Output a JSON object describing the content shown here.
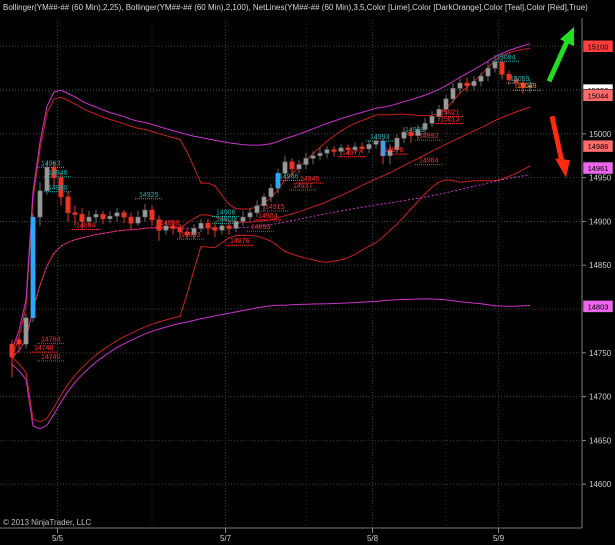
{
  "header": {
    "indicators": "Bollinger(YM##-## (60 Min),2,25), Bollinger(YM##-## (60 Min),2,100), NetLines(YM##-## (60 Min),3,5,Color [Lime],Color [DarkOrange],Color [Teal],Color [Red],True)"
  },
  "footer": {
    "copyright": "© 2013 NinjaTrader, LLC"
  },
  "colors": {
    "background": "#000000",
    "bull_candle": "#6a6a6a",
    "bear_candle": "#ee3322",
    "bollinger_25": "#cc1f1f",
    "bollinger_100": "#cc33cc",
    "netline_teal": "#19b3b3",
    "netline_red": "#ff2a2a",
    "netline_orange": "#ff8c00",
    "cyan_bar": "#2aa8ff",
    "up_arrow": "#22dd22",
    "down_arrow": "#ff2a10"
  },
  "chart_data": {
    "type": "candlestick",
    "ylim": [
      14550,
      15130
    ],
    "y_ticks": [
      14600,
      14650,
      14700,
      14750,
      14800,
      14850,
      14900,
      14950,
      15000,
      15050,
      15100
    ],
    "x_ticks": [
      "5/5",
      "5/7",
      "5/8",
      "5/9"
    ],
    "price_markers": [
      {
        "label": "15100",
        "value": 15100,
        "color": "#ff3f3f"
      },
      {
        "label": "15050",
        "value": 15050,
        "color": "#ffffff"
      },
      {
        "label": "15044",
        "value": 15044,
        "color": "#ff6a6a"
      },
      {
        "label": "14986",
        "value": 14986,
        "color": "#ff6a6a"
      },
      {
        "label": "14961",
        "value": 14961,
        "color": "#ee66ee"
      },
      {
        "label": "14803",
        "value": 14803,
        "color": "#ee66ee"
      }
    ],
    "netline_labels": [
      {
        "text": "14963",
        "color": "teal",
        "i": 5,
        "v": 14963
      },
      {
        "text": "14946",
        "color": "teal",
        "i": 6,
        "v": 14952
      },
      {
        "text": "14930",
        "color": "teal",
        "i": 6,
        "v": 14935
      },
      {
        "text": "14764",
        "color": "red",
        "i": 5,
        "v": 14762
      },
      {
        "text": "14748",
        "color": "red",
        "i": 4,
        "v": 14752
      },
      {
        "text": "14740",
        "color": "red",
        "i": 5,
        "v": 14742
      },
      {
        "text": "14894",
        "color": "red",
        "i": 10,
        "v": 14892
      },
      {
        "text": "14925",
        "color": "teal",
        "i": 19,
        "v": 14927
      },
      {
        "text": "14898",
        "color": "red",
        "i": 22,
        "v": 14895
      },
      {
        "text": "14883",
        "color": "red",
        "i": 25,
        "v": 14881
      },
      {
        "text": "14906",
        "color": "teal",
        "i": 30,
        "v": 14907
      },
      {
        "text": "14900",
        "color": "teal",
        "i": 30,
        "v": 14899
      },
      {
        "text": "14876",
        "color": "red",
        "i": 32,
        "v": 14874
      },
      {
        "text": "14893",
        "color": "red",
        "i": 35,
        "v": 14890
      },
      {
        "text": "14915",
        "color": "red",
        "i": 37,
        "v": 14913
      },
      {
        "text": "14904",
        "color": "red",
        "i": 36,
        "v": 14903
      },
      {
        "text": "14946",
        "color": "teal",
        "i": 39,
        "v": 14948
      },
      {
        "text": "14945",
        "color": "red",
        "i": 42,
        "v": 14945
      },
      {
        "text": "14937",
        "color": "red",
        "i": 41,
        "v": 14937
      },
      {
        "text": "14977",
        "color": "red",
        "i": 48,
        "v": 14975
      },
      {
        "text": "14993",
        "color": "teal",
        "i": 52,
        "v": 14993
      },
      {
        "text": "14976",
        "color": "red",
        "i": 54,
        "v": 14978
      },
      {
        "text": "14999",
        "color": "teal",
        "i": 57,
        "v": 15001
      },
      {
        "text": "14992",
        "color": "red",
        "i": 59,
        "v": 14994
      },
      {
        "text": "14964",
        "color": "red",
        "i": 59,
        "v": 14966
      },
      {
        "text": "15021",
        "color": "red",
        "i": 62,
        "v": 15021
      },
      {
        "text": "15013",
        "color": "red",
        "i": 62,
        "v": 15013
      },
      {
        "text": "15084",
        "color": "teal",
        "i": 70,
        "v": 15084
      },
      {
        "text": "15059",
        "color": "teal",
        "i": 72,
        "v": 15059
      },
      {
        "text": "15049",
        "color": "orange",
        "i": 73,
        "v": 15051
      }
    ],
    "candles": [
      [
        14760,
        14745,
        14722,
        14765
      ],
      [
        14765,
        14760,
        14750,
        14770
      ],
      [
        14760,
        14790,
        14755,
        14795
      ],
      [
        14790,
        14905,
        14785,
        14910
      ],
      [
        14905,
        14935,
        14895,
        14945
      ],
      [
        14935,
        14962,
        14930,
        14968
      ],
      [
        14962,
        14950,
        14940,
        14968
      ],
      [
        14950,
        14928,
        14918,
        14955
      ],
      [
        14928,
        14910,
        14900,
        14935
      ],
      [
        14910,
        14908,
        14895,
        14918
      ],
      [
        14908,
        14900,
        14890,
        14915
      ],
      [
        14900,
        14905,
        14895,
        14912
      ],
      [
        14905,
        14908,
        14898,
        14913
      ],
      [
        14908,
        14903,
        14897,
        14912
      ],
      [
        14903,
        14906,
        14898,
        14912
      ],
      [
        14906,
        14910,
        14900,
        14915
      ],
      [
        14910,
        14905,
        14898,
        14913
      ],
      [
        14905,
        14898,
        14890,
        14910
      ],
      [
        14898,
        14905,
        14895,
        14912
      ],
      [
        14905,
        14913,
        14900,
        14920
      ],
      [
        14913,
        14902,
        14895,
        14918
      ],
      [
        14902,
        14890,
        14878,
        14907
      ],
      [
        14890,
        14895,
        14885,
        14900
      ],
      [
        14895,
        14892,
        14885,
        14900
      ],
      [
        14892,
        14888,
        14880,
        14897
      ],
      [
        14888,
        14885,
        14880,
        14893
      ],
      [
        14885,
        14892,
        14880,
        14897
      ],
      [
        14892,
        14898,
        14888,
        14903
      ],
      [
        14898,
        14893,
        14885,
        14903
      ],
      [
        14893,
        14890,
        14882,
        14900
      ],
      [
        14890,
        14895,
        14885,
        14900
      ],
      [
        14895,
        14892,
        14885,
        14900
      ],
      [
        14892,
        14900,
        14888,
        14905
      ],
      [
        14900,
        14905,
        14895,
        14912
      ],
      [
        14905,
        14910,
        14900,
        14915
      ],
      [
        14910,
        14918,
        14905,
        14924
      ],
      [
        14918,
        14928,
        14912,
        14932
      ],
      [
        14928,
        14938,
        14922,
        14943
      ],
      [
        14938,
        14955,
        14932,
        14960
      ],
      [
        14955,
        14968,
        14950,
        14975
      ],
      [
        14968,
        14960,
        14952,
        14972
      ],
      [
        14960,
        14965,
        14955,
        14970
      ],
      [
        14965,
        14972,
        14960,
        14978
      ],
      [
        14972,
        14975,
        14965,
        14980
      ],
      [
        14975,
        14978,
        14970,
        14984
      ],
      [
        14978,
        14982,
        14972,
        14986
      ],
      [
        14982,
        14980,
        14974,
        14986
      ],
      [
        14980,
        14984,
        14975,
        14988
      ],
      [
        14984,
        14982,
        14976,
        14988
      ],
      [
        14982,
        14985,
        14978,
        14990
      ],
      [
        14985,
        14983,
        14978,
        14990
      ],
      [
        14983,
        14988,
        14978,
        14993
      ],
      [
        14988,
        14992,
        14983,
        14996
      ],
      [
        14992,
        14975,
        14965,
        14995
      ],
      [
        14975,
        14982,
        14965,
        14988
      ],
      [
        14982,
        14995,
        14978,
        15000
      ],
      [
        14995,
        15002,
        14990,
        15008
      ],
      [
        15002,
        14998,
        14990,
        15006
      ],
      [
        14998,
        15005,
        14993,
        15010
      ],
      [
        15005,
        15012,
        15000,
        15018
      ],
      [
        15012,
        15020,
        15008,
        15026
      ],
      [
        15020,
        15028,
        15014,
        15033
      ],
      [
        15028,
        15040,
        15022,
        15045
      ],
      [
        15040,
        15052,
        15035,
        15058
      ],
      [
        15052,
        15058,
        15046,
        15063
      ],
      [
        15058,
        15055,
        15048,
        15064
      ],
      [
        15055,
        15060,
        15050,
        15066
      ],
      [
        15060,
        15066,
        15054,
        15070
      ],
      [
        15066,
        15075,
        15060,
        15082
      ],
      [
        15075,
        15082,
        15070,
        15090
      ],
      [
        15082,
        15068,
        15062,
        15086
      ],
      [
        15068,
        15062,
        15056,
        15072
      ],
      [
        15062,
        15058,
        15052,
        15066
      ],
      [
        15058,
        15053,
        15046,
        15063
      ],
      [
        15053,
        15055,
        15047,
        15062
      ]
    ]
  }
}
